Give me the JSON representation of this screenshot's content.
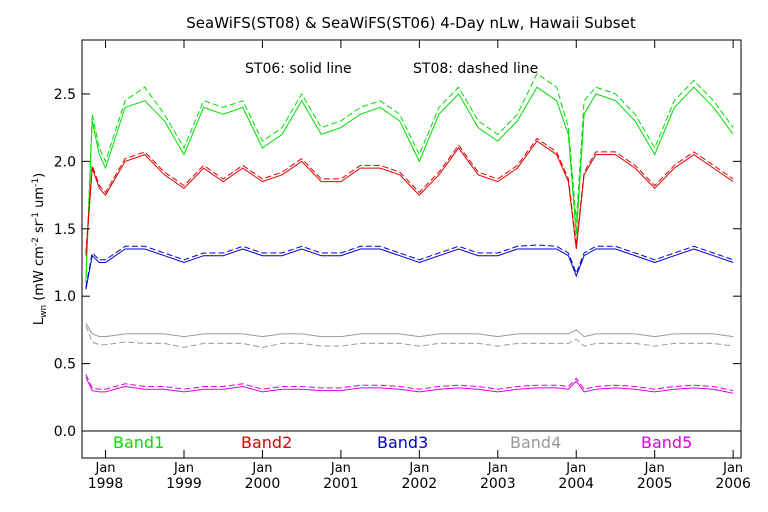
{
  "chart_data": {
    "type": "line",
    "title": "SeaWiFS(ST08) & SeaWiFS(ST06) 4-Day nLw, Hawaii Subset",
    "annotation_solid": "ST06: solid line",
    "annotation_dashed": "ST08: dashed line",
    "ylabel": {
      "main": "L",
      "sub": "wn",
      "units_open": " (mW cm",
      "exp1": "-2",
      "units_mid1": " sr",
      "exp2": "-1",
      "units_mid2": " um",
      "exp3": "-1",
      "units_close": ")"
    },
    "xlim": [
      1997.7,
      2006.1
    ],
    "ylim": [
      -0.2,
      2.9
    ],
    "y_ticks": [
      {
        "value": 0.0,
        "label": "0.0"
      },
      {
        "value": 0.5,
        "label": "0.5"
      },
      {
        "value": 1.0,
        "label": "1.0"
      },
      {
        "value": 1.5,
        "label": "1.5"
      },
      {
        "value": 2.0,
        "label": "2.0"
      },
      {
        "value": 2.5,
        "label": "2.5"
      }
    ],
    "x_ticks": [
      {
        "value": 1998,
        "month": "Jan",
        "year": "1998"
      },
      {
        "value": 1999,
        "month": "Jan",
        "year": "1999"
      },
      {
        "value": 2000,
        "month": "Jan",
        "year": "2000"
      },
      {
        "value": 2001,
        "month": "Jan",
        "year": "2001"
      },
      {
        "value": 2002,
        "month": "Jan",
        "year": "2002"
      },
      {
        "value": 2003,
        "month": "Jan",
        "year": "2003"
      },
      {
        "value": 2004,
        "month": "Jan",
        "year": "2004"
      },
      {
        "value": 2005,
        "month": "Jan",
        "year": "2005"
      },
      {
        "value": 2006,
        "month": "Jan",
        "year": "2006"
      }
    ],
    "x": [
      1997.75,
      1997.83,
      1997.92,
      1998.0,
      1998.25,
      1998.5,
      1998.75,
      1999.0,
      1999.25,
      1999.5,
      1999.75,
      2000.0,
      2000.25,
      2000.5,
      2000.75,
      2001.0,
      2001.25,
      2001.5,
      2001.75,
      2002.0,
      2002.25,
      2002.5,
      2002.75,
      2003.0,
      2003.25,
      2003.5,
      2003.75,
      2003.9,
      2004.0,
      2004.1,
      2004.25,
      2004.5,
      2004.75,
      2005.0,
      2005.25,
      2005.5,
      2005.75,
      2006.0
    ],
    "series": [
      {
        "name": "Band1",
        "color": "#00dd00",
        "st06": [
          1.1,
          2.3,
          2.05,
          1.95,
          2.4,
          2.45,
          2.3,
          2.05,
          2.4,
          2.35,
          2.4,
          2.1,
          2.2,
          2.45,
          2.2,
          2.25,
          2.35,
          2.4,
          2.3,
          2.0,
          2.35,
          2.5,
          2.25,
          2.15,
          2.3,
          2.55,
          2.45,
          2.2,
          1.45,
          2.35,
          2.5,
          2.45,
          2.3,
          2.05,
          2.4,
          2.55,
          2.4,
          2.2
        ],
        "st08": [
          1.15,
          2.35,
          2.1,
          2.0,
          2.45,
          2.55,
          2.35,
          2.1,
          2.45,
          2.4,
          2.45,
          2.15,
          2.25,
          2.5,
          2.25,
          2.3,
          2.4,
          2.45,
          2.35,
          2.05,
          2.4,
          2.55,
          2.3,
          2.2,
          2.35,
          2.65,
          2.55,
          2.25,
          1.55,
          2.45,
          2.55,
          2.5,
          2.35,
          2.1,
          2.45,
          2.6,
          2.45,
          2.25
        ]
      },
      {
        "name": "Band2",
        "color": "#dd0000",
        "st06": [
          1.3,
          1.95,
          1.8,
          1.75,
          2.0,
          2.05,
          1.9,
          1.8,
          1.95,
          1.85,
          1.95,
          1.85,
          1.9,
          2.0,
          1.85,
          1.85,
          1.95,
          1.95,
          1.9,
          1.75,
          1.9,
          2.1,
          1.9,
          1.85,
          1.95,
          2.15,
          2.05,
          1.85,
          1.35,
          1.9,
          2.05,
          2.05,
          1.95,
          1.8,
          1.95,
          2.05,
          1.95,
          1.85
        ],
        "st08": [
          1.32,
          1.97,
          1.82,
          1.77,
          2.02,
          2.07,
          1.92,
          1.82,
          1.97,
          1.87,
          1.97,
          1.87,
          1.92,
          2.02,
          1.87,
          1.87,
          1.97,
          1.97,
          1.92,
          1.77,
          1.92,
          2.12,
          1.92,
          1.87,
          1.97,
          2.17,
          2.07,
          1.87,
          1.38,
          1.92,
          2.07,
          2.07,
          1.97,
          1.82,
          1.97,
          2.07,
          1.97,
          1.87
        ]
      },
      {
        "name": "Band3",
        "color": "#0000cc",
        "st06": [
          1.05,
          1.3,
          1.25,
          1.25,
          1.35,
          1.35,
          1.3,
          1.25,
          1.3,
          1.3,
          1.35,
          1.3,
          1.3,
          1.35,
          1.3,
          1.3,
          1.35,
          1.35,
          1.3,
          1.25,
          1.3,
          1.35,
          1.3,
          1.3,
          1.35,
          1.35,
          1.35,
          1.3,
          1.15,
          1.3,
          1.35,
          1.35,
          1.3,
          1.25,
          1.3,
          1.35,
          1.3,
          1.25
        ],
        "st08": [
          1.07,
          1.32,
          1.27,
          1.27,
          1.37,
          1.37,
          1.32,
          1.27,
          1.32,
          1.32,
          1.37,
          1.32,
          1.32,
          1.37,
          1.32,
          1.32,
          1.37,
          1.37,
          1.32,
          1.27,
          1.32,
          1.37,
          1.32,
          1.32,
          1.37,
          1.38,
          1.37,
          1.32,
          1.17,
          1.32,
          1.37,
          1.37,
          1.32,
          1.27,
          1.32,
          1.37,
          1.32,
          1.27
        ]
      },
      {
        "name": "Band4",
        "color": "#999999",
        "st06": [
          0.8,
          0.72,
          0.7,
          0.7,
          0.72,
          0.72,
          0.72,
          0.7,
          0.72,
          0.72,
          0.72,
          0.7,
          0.72,
          0.72,
          0.7,
          0.7,
          0.72,
          0.72,
          0.72,
          0.7,
          0.72,
          0.72,
          0.72,
          0.7,
          0.72,
          0.72,
          0.72,
          0.72,
          0.75,
          0.7,
          0.72,
          0.72,
          0.72,
          0.7,
          0.72,
          0.72,
          0.72,
          0.7
        ],
        "st08": [
          0.78,
          0.66,
          0.64,
          0.64,
          0.66,
          0.65,
          0.65,
          0.62,
          0.65,
          0.65,
          0.65,
          0.62,
          0.65,
          0.65,
          0.63,
          0.63,
          0.65,
          0.65,
          0.65,
          0.63,
          0.65,
          0.65,
          0.65,
          0.63,
          0.65,
          0.65,
          0.65,
          0.65,
          0.68,
          0.63,
          0.65,
          0.65,
          0.65,
          0.63,
          0.65,
          0.65,
          0.65,
          0.63
        ]
      },
      {
        "name": "Band5",
        "color": "#dd00dd",
        "st06": [
          0.4,
          0.3,
          0.29,
          0.29,
          0.33,
          0.31,
          0.31,
          0.29,
          0.31,
          0.31,
          0.33,
          0.29,
          0.31,
          0.31,
          0.3,
          0.3,
          0.32,
          0.32,
          0.31,
          0.29,
          0.31,
          0.32,
          0.31,
          0.29,
          0.31,
          0.32,
          0.32,
          0.31,
          0.37,
          0.29,
          0.31,
          0.32,
          0.31,
          0.29,
          0.31,
          0.32,
          0.31,
          0.28
        ],
        "st08": [
          0.42,
          0.32,
          0.31,
          0.31,
          0.35,
          0.33,
          0.33,
          0.31,
          0.33,
          0.33,
          0.35,
          0.31,
          0.33,
          0.33,
          0.32,
          0.32,
          0.34,
          0.34,
          0.33,
          0.31,
          0.33,
          0.34,
          0.33,
          0.31,
          0.33,
          0.34,
          0.34,
          0.33,
          0.39,
          0.31,
          0.33,
          0.34,
          0.33,
          0.31,
          0.33,
          0.34,
          0.33,
          0.3
        ]
      }
    ]
  }
}
